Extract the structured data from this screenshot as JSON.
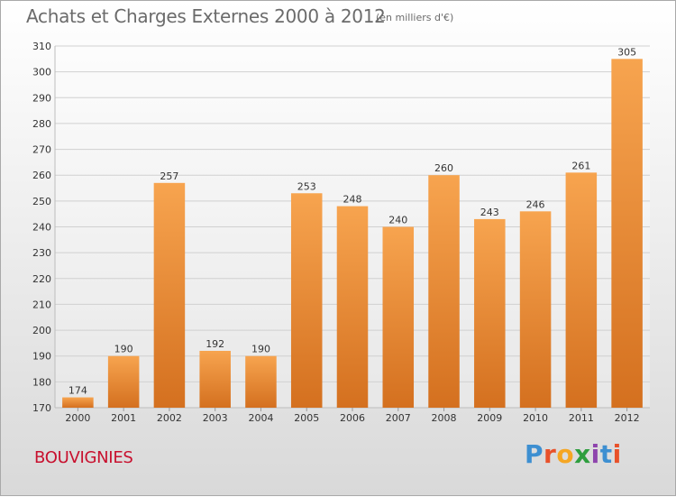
{
  "header": {
    "title": "Achats et Charges Externes 2000 à 2012",
    "subtitle": "(en milliers d'€)"
  },
  "footer": {
    "place": "BOUVIGNIES",
    "logo_letters": [
      "P",
      "r",
      "o",
      "x",
      "i",
      "t",
      "i"
    ],
    "logo_colors": [
      "#3d8fd1",
      "#e8512a",
      "#f5a623",
      "#2e9e3e",
      "#8e44ad",
      "#3d8fd1",
      "#e8512a"
    ]
  },
  "chart_data": {
    "type": "bar",
    "categories": [
      "2000",
      "2001",
      "2002",
      "2003",
      "2004",
      "2005",
      "2006",
      "2007",
      "2008",
      "2009",
      "2010",
      "2011",
      "2012"
    ],
    "values": [
      174,
      190,
      257,
      192,
      190,
      253,
      248,
      240,
      260,
      243,
      246,
      261,
      305
    ],
    "ylim": [
      170,
      310
    ],
    "yticks": [
      170,
      180,
      190,
      200,
      210,
      220,
      230,
      240,
      250,
      260,
      270,
      280,
      290,
      300,
      310
    ],
    "grid": true,
    "bar_color_top": "#f7a44f",
    "bar_color_bottom": "#d4701f",
    "grid_color": "#d0d0d0"
  }
}
